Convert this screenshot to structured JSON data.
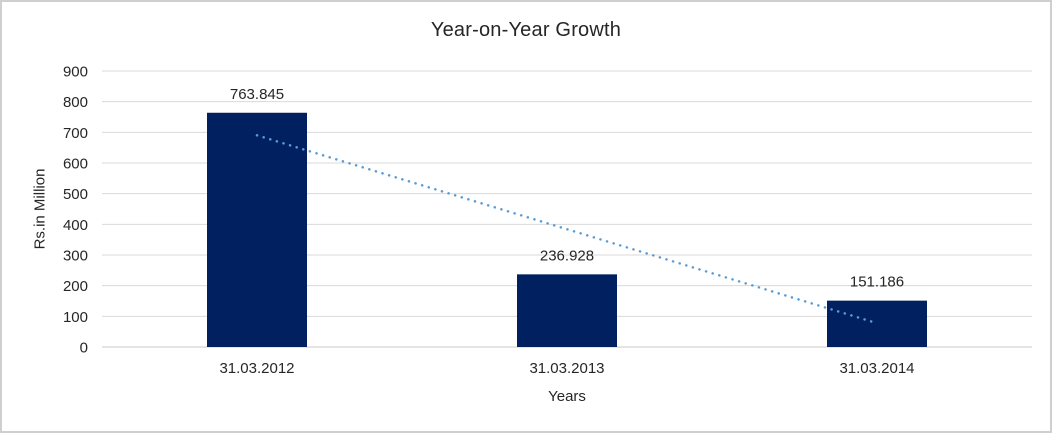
{
  "chart_data": {
    "type": "bar",
    "title": "Year-on-Year Growth",
    "xlabel": "Years",
    "ylabel": "Rs.in Million",
    "categories": [
      "31.03.2012",
      "31.03.2013",
      "31.03.2014"
    ],
    "values": [
      763.845,
      236.928,
      151.186
    ],
    "value_labels": [
      "763.845",
      "236.928",
      "151.186"
    ],
    "ylim": [
      0,
      900
    ],
    "ytick_step": 100,
    "grid": true,
    "legend": "none",
    "bar_color": "#002060",
    "gridline_color": "#d9d9d9",
    "baseline_color": "#c9c9c9",
    "axis_text_color": "#262626",
    "trendline": {
      "type": "linear",
      "style": "dotted",
      "color": "#5B9BD5",
      "start_value": 690.3,
      "end_value": 77.7
    }
  }
}
